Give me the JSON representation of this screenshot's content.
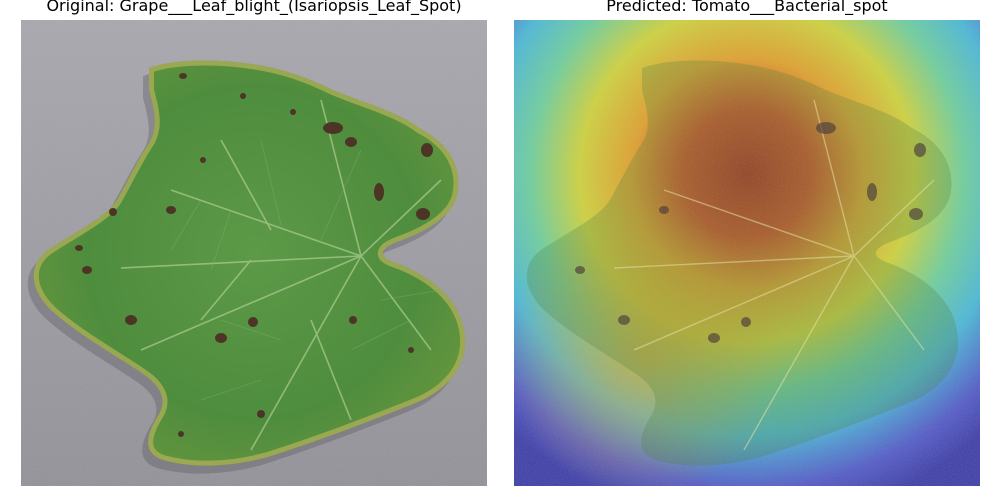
{
  "left_panel": {
    "title": "Original: Grape___Leaf_blight_(Isariopsis_Leaf_Spot)"
  },
  "right_panel": {
    "title": "Predicted: Tomato___Bacterial_spot"
  },
  "colors": {
    "background_gray": "#9c9aa2",
    "leaf_green": "#4f8d3e",
    "leaf_dark": "#2f6a2c",
    "spot_brown": "#5a3a2a",
    "heat_red": "#c8321e",
    "heat_yellow": "#e8d23c",
    "heat_cyan": "#4cc8d8",
    "heat_blue": "#4a4ec8"
  },
  "icons": [
    "leaf-photo",
    "gradcam-heatmap-overlay"
  ]
}
